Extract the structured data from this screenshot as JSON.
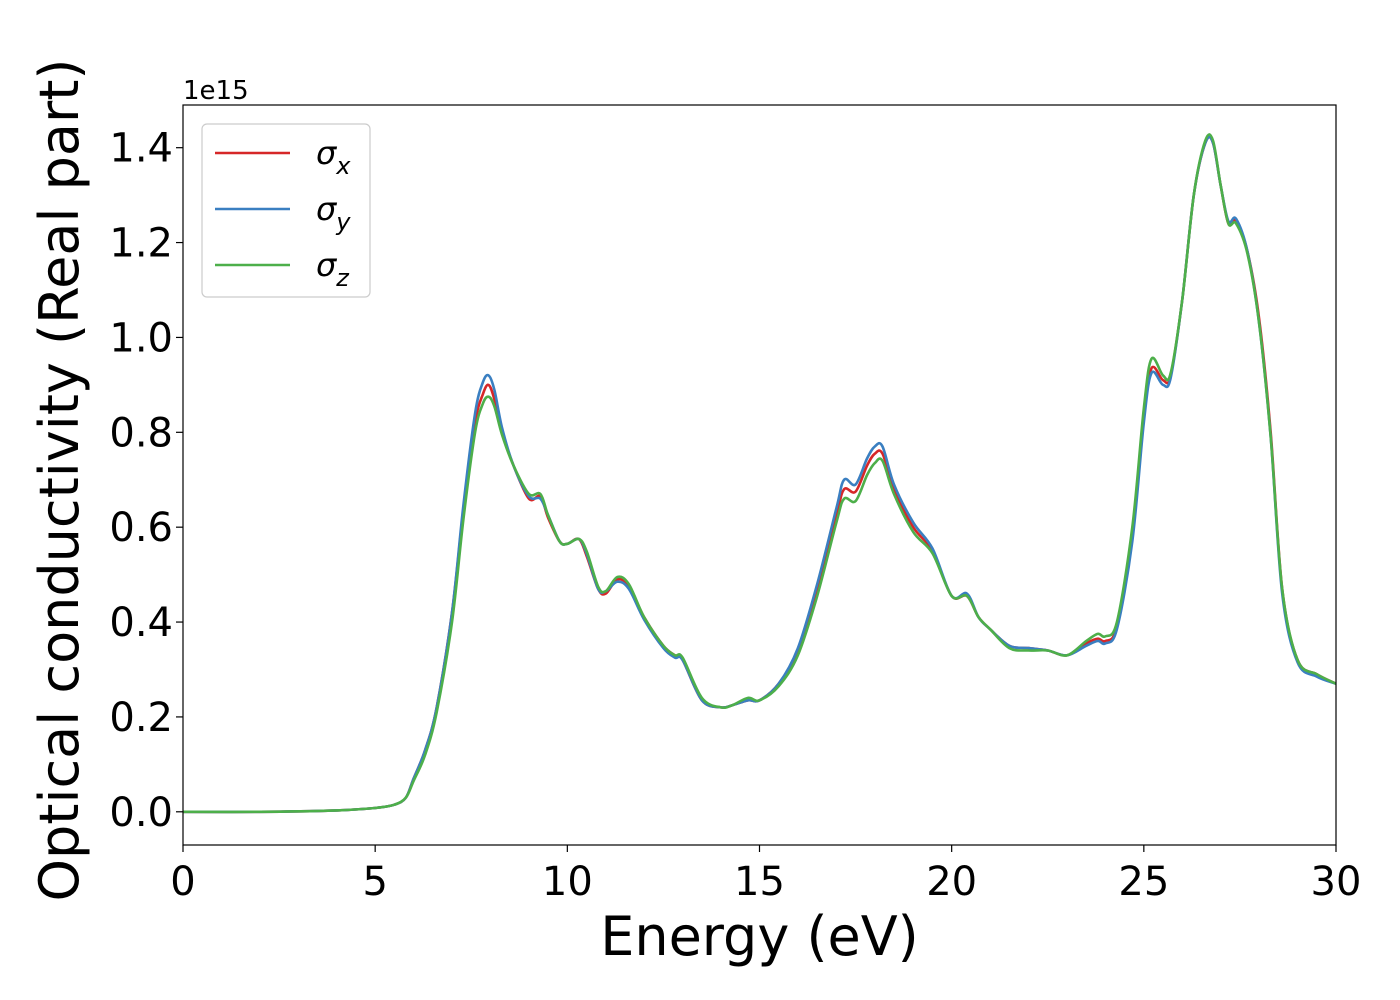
{
  "chart_data": {
    "type": "line",
    "title": "",
    "xlabel": "Energy (eV)",
    "ylabel": "Optical conductivity (Real part)",
    "y_offset_text": "1e15",
    "xlim": [
      0,
      30
    ],
    "ylim": [
      -0.07,
      1.49
    ],
    "x_ticks": [
      0,
      5,
      10,
      15,
      20,
      25,
      30
    ],
    "x_tick_labels": [
      "0",
      "5",
      "10",
      "15",
      "20",
      "25",
      "30"
    ],
    "y_ticks": [
      0.0,
      0.2,
      0.4,
      0.6,
      0.8,
      1.0,
      1.2,
      1.4
    ],
    "y_tick_labels": [
      "0.0",
      "0.2",
      "0.4",
      "0.6",
      "0.8",
      "1.0",
      "1.2",
      "1.4"
    ],
    "grid": false,
    "legend_position": "top-left",
    "colors": {
      "sigma_x": "#d62728",
      "sigma_y": "#3a7fc1",
      "sigma_z": "#4daf4a"
    },
    "x": [
      0,
      2,
      4,
      5,
      5.5,
      5.8,
      6.0,
      6.3,
      6.6,
      7.0,
      7.3,
      7.6,
      7.8,
      7.95,
      8.1,
      8.3,
      8.6,
      9.0,
      9.3,
      9.5,
      9.8,
      10.0,
      10.3,
      10.5,
      10.8,
      11.0,
      11.3,
      11.6,
      12.0,
      12.5,
      12.8,
      13.0,
      13.5,
      14.0,
      14.3,
      14.7,
      15.0,
      15.5,
      16.0,
      16.5,
      17.0,
      17.2,
      17.5,
      17.8,
      18.0,
      18.2,
      18.5,
      19.0,
      19.5,
      20.0,
      20.4,
      20.7,
      21.0,
      21.5,
      22.0,
      22.5,
      23.0,
      23.5,
      23.8,
      24.0,
      24.3,
      24.7,
      25.0,
      25.2,
      25.5,
      25.7,
      26.0,
      26.3,
      26.6,
      26.8,
      27.0,
      27.2,
      27.4,
      27.7,
      28.0,
      28.3,
      28.6,
      29.0,
      29.5,
      30.0
    ],
    "series": [
      {
        "name": "σx",
        "values": [
          0,
          0.0,
          0.003,
          0.008,
          0.015,
          0.03,
          0.07,
          0.13,
          0.22,
          0.42,
          0.64,
          0.82,
          0.88,
          0.9,
          0.87,
          0.8,
          0.73,
          0.66,
          0.665,
          0.62,
          0.57,
          0.565,
          0.575,
          0.54,
          0.47,
          0.46,
          0.49,
          0.475,
          0.41,
          0.35,
          0.33,
          0.32,
          0.235,
          0.22,
          0.225,
          0.235,
          0.235,
          0.27,
          0.34,
          0.47,
          0.625,
          0.68,
          0.675,
          0.73,
          0.755,
          0.755,
          0.68,
          0.6,
          0.55,
          0.455,
          0.455,
          0.41,
          0.385,
          0.35,
          0.345,
          0.34,
          0.33,
          0.355,
          0.365,
          0.36,
          0.39,
          0.58,
          0.83,
          0.935,
          0.91,
          0.92,
          1.08,
          1.3,
          1.41,
          1.41,
          1.32,
          1.24,
          1.245,
          1.18,
          1.04,
          0.8,
          0.47,
          0.32,
          0.29,
          0.27
        ]
      },
      {
        "name": "σy",
        "values": [
          0,
          0.0,
          0.003,
          0.008,
          0.015,
          0.03,
          0.07,
          0.13,
          0.22,
          0.42,
          0.65,
          0.84,
          0.905,
          0.92,
          0.89,
          0.81,
          0.73,
          0.665,
          0.66,
          0.625,
          0.57,
          0.565,
          0.575,
          0.545,
          0.47,
          0.465,
          0.485,
          0.47,
          0.405,
          0.345,
          0.325,
          0.32,
          0.235,
          0.22,
          0.225,
          0.235,
          0.235,
          0.27,
          0.345,
          0.48,
          0.64,
          0.7,
          0.69,
          0.745,
          0.77,
          0.77,
          0.69,
          0.61,
          0.555,
          0.455,
          0.46,
          0.41,
          0.385,
          0.35,
          0.345,
          0.34,
          0.33,
          0.35,
          0.36,
          0.355,
          0.385,
          0.57,
          0.82,
          0.925,
          0.9,
          0.915,
          1.08,
          1.3,
          1.41,
          1.41,
          1.32,
          1.245,
          1.25,
          1.18,
          1.03,
          0.79,
          0.46,
          0.315,
          0.285,
          0.27
        ]
      },
      {
        "name": "σz",
        "values": [
          0,
          0.0,
          0.003,
          0.008,
          0.015,
          0.03,
          0.065,
          0.12,
          0.21,
          0.4,
          0.62,
          0.8,
          0.86,
          0.875,
          0.855,
          0.795,
          0.73,
          0.67,
          0.67,
          0.625,
          0.57,
          0.565,
          0.575,
          0.55,
          0.475,
          0.465,
          0.495,
          0.48,
          0.41,
          0.35,
          0.33,
          0.325,
          0.24,
          0.22,
          0.225,
          0.24,
          0.235,
          0.265,
          0.33,
          0.455,
          0.61,
          0.66,
          0.655,
          0.71,
          0.735,
          0.74,
          0.67,
          0.59,
          0.545,
          0.455,
          0.455,
          0.41,
          0.385,
          0.345,
          0.34,
          0.34,
          0.33,
          0.36,
          0.375,
          0.37,
          0.4,
          0.6,
          0.85,
          0.955,
          0.92,
          0.925,
          1.08,
          1.3,
          1.415,
          1.415,
          1.32,
          1.24,
          1.24,
          1.175,
          1.03,
          0.79,
          0.47,
          0.32,
          0.29,
          0.27
        ]
      }
    ],
    "legend": [
      {
        "symbol": "σ",
        "sub": "x",
        "color": "#d62728"
      },
      {
        "symbol": "σ",
        "sub": "y",
        "color": "#3a7fc1"
      },
      {
        "symbol": "σ",
        "sub": "z",
        "color": "#4daf4a"
      }
    ]
  }
}
